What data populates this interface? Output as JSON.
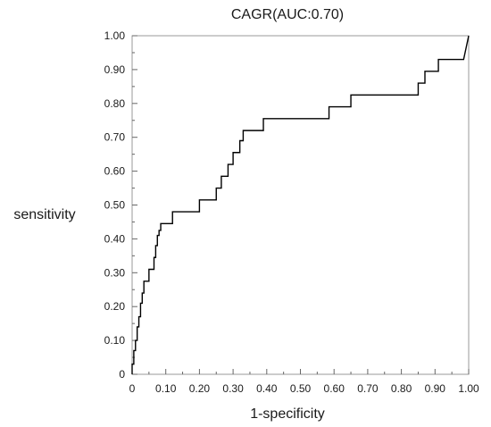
{
  "chart_data": {
    "type": "line",
    "title": "CAGR(AUC:0.70)",
    "xlabel": "1-specificity",
    "ylabel": "sensitivity",
    "xlim": [
      0,
      1
    ],
    "ylim": [
      0,
      1
    ],
    "grid": false,
    "legend": "none",
    "x_ticks": [
      {
        "value": 0,
        "label": "0"
      },
      {
        "value": 0.1,
        "label": "0.10"
      },
      {
        "value": 0.2,
        "label": "0.20"
      },
      {
        "value": 0.3,
        "label": "0.30"
      },
      {
        "value": 0.4,
        "label": "0.40"
      },
      {
        "value": 0.5,
        "label": "0.50"
      },
      {
        "value": 0.6,
        "label": "0.60"
      },
      {
        "value": 0.7,
        "label": "0.70"
      },
      {
        "value": 0.8,
        "label": "0.80"
      },
      {
        "value": 0.9,
        "label": "0.90"
      },
      {
        "value": 1.0,
        "label": "1.00"
      }
    ],
    "y_ticks": [
      {
        "value": 0,
        "label": "0"
      },
      {
        "value": 0.1,
        "label": "0.10"
      },
      {
        "value": 0.2,
        "label": "0.20"
      },
      {
        "value": 0.3,
        "label": "0.30"
      },
      {
        "value": 0.4,
        "label": "0.40"
      },
      {
        "value": 0.5,
        "label": "0.50"
      },
      {
        "value": 0.6,
        "label": "0.60"
      },
      {
        "value": 0.7,
        "label": "0.70"
      },
      {
        "value": 0.8,
        "label": "0.80"
      },
      {
        "value": 0.9,
        "label": "0.90"
      },
      {
        "value": 1.0,
        "label": "1.00"
      }
    ],
    "series": [
      {
        "color": "#000000",
        "x": [
          0,
          0,
          0.005,
          0.005,
          0.01,
          0.01,
          0.015,
          0.015,
          0.02,
          0.02,
          0.025,
          0.025,
          0.03,
          0.03,
          0.035,
          0.035,
          0.05,
          0.05,
          0.065,
          0.065,
          0.07,
          0.07,
          0.075,
          0.075,
          0.08,
          0.08,
          0.085,
          0.085,
          0.09,
          0.09,
          0.12,
          0.12,
          0.2,
          0.2,
          0.25,
          0.25,
          0.265,
          0.265,
          0.285,
          0.285,
          0.3,
          0.3,
          0.32,
          0.32,
          0.33,
          0.33,
          0.39,
          0.39,
          0.585,
          0.585,
          0.65,
          0.65,
          0.85,
          0.85,
          0.87,
          0.87,
          0.91,
          0.91,
          0.985,
          1.0
        ],
        "y": [
          0,
          0.03,
          0.03,
          0.07,
          0.07,
          0.1,
          0.1,
          0.14,
          0.14,
          0.17,
          0.17,
          0.21,
          0.21,
          0.24,
          0.24,
          0.275,
          0.275,
          0.31,
          0.31,
          0.345,
          0.345,
          0.38,
          0.38,
          0.41,
          0.41,
          0.425,
          0.425,
          0.445,
          0.445,
          0.445,
          0.445,
          0.48,
          0.48,
          0.515,
          0.515,
          0.55,
          0.55,
          0.585,
          0.585,
          0.62,
          0.62,
          0.655,
          0.655,
          0.69,
          0.69,
          0.72,
          0.72,
          0.755,
          0.755,
          0.79,
          0.79,
          0.825,
          0.825,
          0.86,
          0.86,
          0.895,
          0.895,
          0.93,
          0.93,
          1.0
        ]
      }
    ]
  }
}
